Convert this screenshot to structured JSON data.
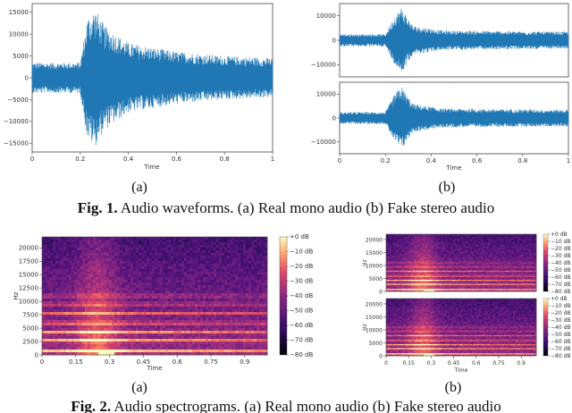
{
  "colors": {
    "wave": "#1f77b4",
    "spec_low": "#000004",
    "spec_mid": "#b63679",
    "spec_high": "#fcfdbf"
  },
  "fig1": {
    "caption_bold": "Fig. 1.",
    "caption_text": " Audio waveforms. (a) Real mono audio (b) Fake stereo audio",
    "label_a": "(a)",
    "label_b": "(b)",
    "xlabel": "Time",
    "x_ticks": [
      "0",
      "0.2",
      "0.4",
      "0.6",
      "0.8",
      "1"
    ],
    "mono_y_ticks": [
      "15000",
      "10000",
      "5000",
      "0",
      "−5000",
      "−10000",
      "−15000"
    ],
    "stereo_y_ticks": [
      "10000",
      "0",
      "−10000"
    ]
  },
  "fig2": {
    "caption_bold": "Fig. 2.",
    "caption_text": " Audio spectrograms. (a) Real mono audio (b) Fake stereo audio",
    "label_a": "(a)",
    "label_b": "(b)",
    "ylabel": "Hz",
    "xlabel": "Time",
    "x_ticks": [
      "0",
      "0.15",
      "0.3",
      "0.45",
      "0.6",
      "0.75",
      "0.9"
    ],
    "y_ticks": [
      "20000",
      "17500",
      "15000",
      "12500",
      "10000",
      "7500",
      "5000",
      "2500",
      "0"
    ],
    "y_ticks_small": [
      "20000",
      "15000",
      "10000",
      "5000",
      "0"
    ],
    "cbar_ticks": [
      "+0 dB",
      "−10 dB",
      "−20 dB",
      "−30 dB",
      "−40 dB",
      "−50 dB",
      "−60 dB",
      "−70 dB",
      "−80 dB"
    ]
  },
  "chart_data": [
    {
      "type": "line",
      "name": "waveform-mono",
      "x_range": [
        0,
        1
      ],
      "ylim": [
        -17000,
        17000
      ],
      "xlabel": "Time",
      "envelope": {
        "t": [
          0,
          0.2,
          0.23,
          0.26,
          0.3,
          0.4,
          0.6,
          0.8,
          1.0
        ],
        "amp": [
          3500,
          3500,
          14000,
          16000,
          12000,
          8000,
          6000,
          5000,
          4500
        ]
      }
    },
    {
      "type": "line",
      "name": "waveform-stereo-left",
      "x_range": [
        0,
        1
      ],
      "ylim": [
        -15000,
        15000
      ],
      "xlabel": "Time",
      "envelope": {
        "t": [
          0,
          0.2,
          0.24,
          0.27,
          0.32,
          0.45,
          1.0
        ],
        "amp": [
          2500,
          2500,
          10000,
          13500,
          6000,
          4000,
          3500
        ]
      }
    },
    {
      "type": "line",
      "name": "waveform-stereo-right",
      "x_range": [
        0,
        1
      ],
      "ylim": [
        -15000,
        15000
      ],
      "xlabel": "Time",
      "envelope": {
        "t": [
          0,
          0.2,
          0.24,
          0.27,
          0.32,
          0.45,
          1.0
        ],
        "amp": [
          2500,
          2500,
          10000,
          13500,
          6000,
          4000,
          3500
        ]
      }
    },
    {
      "type": "heatmap",
      "name": "spectrogram-mono",
      "x_range": [
        0,
        1.0
      ],
      "ylim": [
        0,
        22050
      ],
      "ylabel": "Hz",
      "xlabel": "Time",
      "zlim": [
        -80,
        0
      ]
    },
    {
      "type": "heatmap",
      "name": "spectrogram-stereo-left",
      "x_range": [
        0,
        1.0
      ],
      "ylim": [
        0,
        22050
      ],
      "ylabel": "Hz",
      "xlabel": "Time",
      "zlim": [
        -80,
        0
      ]
    },
    {
      "type": "heatmap",
      "name": "spectrogram-stereo-right",
      "x_range": [
        0,
        1.0
      ],
      "ylim": [
        0,
        22050
      ],
      "ylabel": "Hz",
      "xlabel": "Time",
      "zlim": [
        -80,
        0
      ]
    }
  ]
}
